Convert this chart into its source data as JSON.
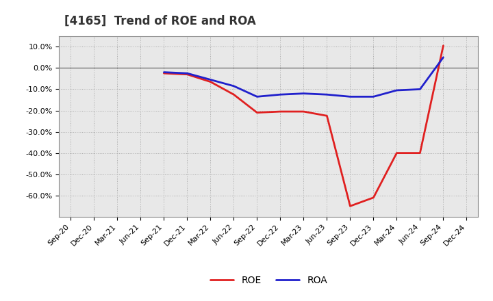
{
  "title": "[4165]  Trend of ROE and ROA",
  "x_labels": [
    "Sep-20",
    "Dec-20",
    "Mar-21",
    "Jun-21",
    "Sep-21",
    "Dec-21",
    "Mar-22",
    "Jun-22",
    "Sep-22",
    "Dec-22",
    "Mar-23",
    "Jun-23",
    "Sep-23",
    "Dec-23",
    "Mar-24",
    "Jun-24",
    "Sep-24",
    "Dec-24"
  ],
  "roe": [
    null,
    null,
    null,
    null,
    -2.5,
    -3.0,
    -6.5,
    -12.5,
    -21.0,
    -20.5,
    -20.5,
    -22.5,
    -65.0,
    -61.0,
    -40.0,
    -40.0,
    10.5,
    null
  ],
  "roa": [
    null,
    null,
    null,
    null,
    -2.0,
    -2.5,
    -5.5,
    -8.5,
    -13.5,
    -12.5,
    -12.0,
    -12.5,
    -13.5,
    -13.5,
    -10.5,
    -10.0,
    5.0,
    null
  ],
  "roe_color": "#e02020",
  "roa_color": "#2020cc",
  "ylim_min": -70,
  "ylim_max": 15,
  "yticks": [
    10.0,
    0.0,
    -10.0,
    -20.0,
    -30.0,
    -40.0,
    -50.0,
    -60.0
  ],
  "background_color": "#ffffff",
  "plot_bg_color": "#e8e8e8",
  "grid_color": "#aaaaaa",
  "legend_roe": "ROE",
  "legend_roa": "ROA",
  "line_width": 2.0,
  "title_fontsize": 12,
  "tick_fontsize": 8,
  "legend_fontsize": 10
}
